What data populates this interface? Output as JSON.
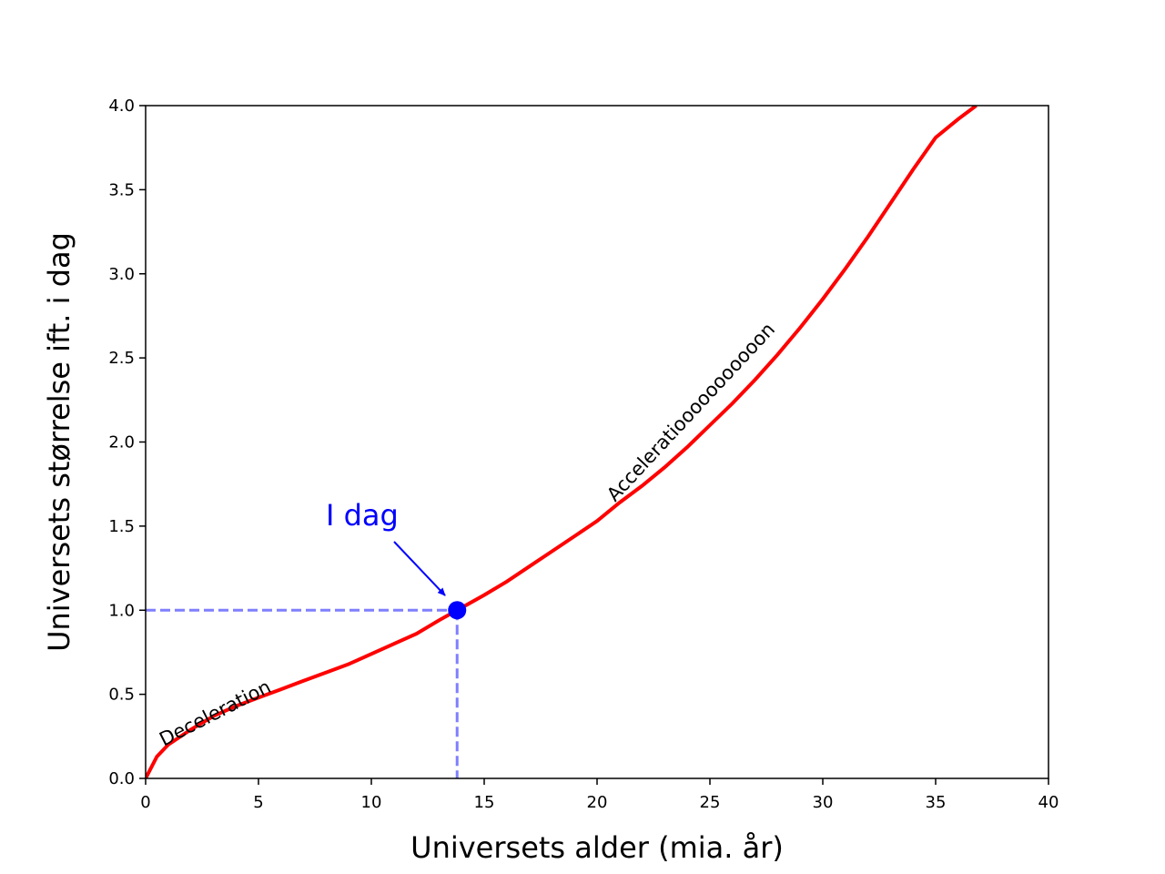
{
  "chart_data": {
    "type": "line",
    "title": "",
    "xlabel": "Universets alder (mia. år)",
    "ylabel": "Universets størrelse ift. i dag",
    "xlim": [
      0,
      40
    ],
    "ylim": [
      0,
      4.0
    ],
    "x_ticks": [
      "0",
      "5",
      "10",
      "15",
      "20",
      "25",
      "30",
      "35",
      "40"
    ],
    "y_ticks": [
      "0.0",
      "0.5",
      "1.0",
      "1.5",
      "2.0",
      "2.5",
      "3.0",
      "3.5",
      "4.0"
    ],
    "grid": false,
    "legend": "none",
    "series": [
      {
        "color": "#ff0000",
        "x": [
          0,
          0.5,
          1,
          2,
          3,
          4,
          5,
          6,
          7,
          8,
          9,
          10,
          11,
          12,
          13,
          13.8,
          15,
          16,
          17,
          18,
          19,
          20,
          21,
          22,
          23,
          24,
          25,
          26,
          27,
          28,
          29,
          30,
          31,
          32,
          33,
          34,
          35,
          36,
          36.8
        ],
        "y": [
          0,
          0.13,
          0.2,
          0.29,
          0.37,
          0.43,
          0.48,
          0.53,
          0.58,
          0.63,
          0.68,
          0.74,
          0.8,
          0.86,
          0.94,
          1.0,
          1.09,
          1.17,
          1.26,
          1.35,
          1.44,
          1.53,
          1.64,
          1.74,
          1.85,
          1.97,
          2.1,
          2.23,
          2.37,
          2.52,
          2.68,
          2.85,
          3.03,
          3.22,
          3.42,
          3.62,
          3.81,
          3.92,
          4.0
        ]
      }
    ],
    "reference_lines": {
      "x": 13.8,
      "y": 1.0,
      "color": "#7f7fff",
      "style": "dashed"
    },
    "today_point": {
      "x": 13.8,
      "y": 1.0,
      "color": "#0000ff",
      "label": "I dag"
    },
    "annotations": [
      {
        "text": "Deceleration",
        "x": 0.8,
        "y": 0.19,
        "angle": 27
      },
      {
        "text": "Acceleratiooooooooooon",
        "x": 20.8,
        "y": 1.64,
        "angle": 47
      }
    ]
  }
}
